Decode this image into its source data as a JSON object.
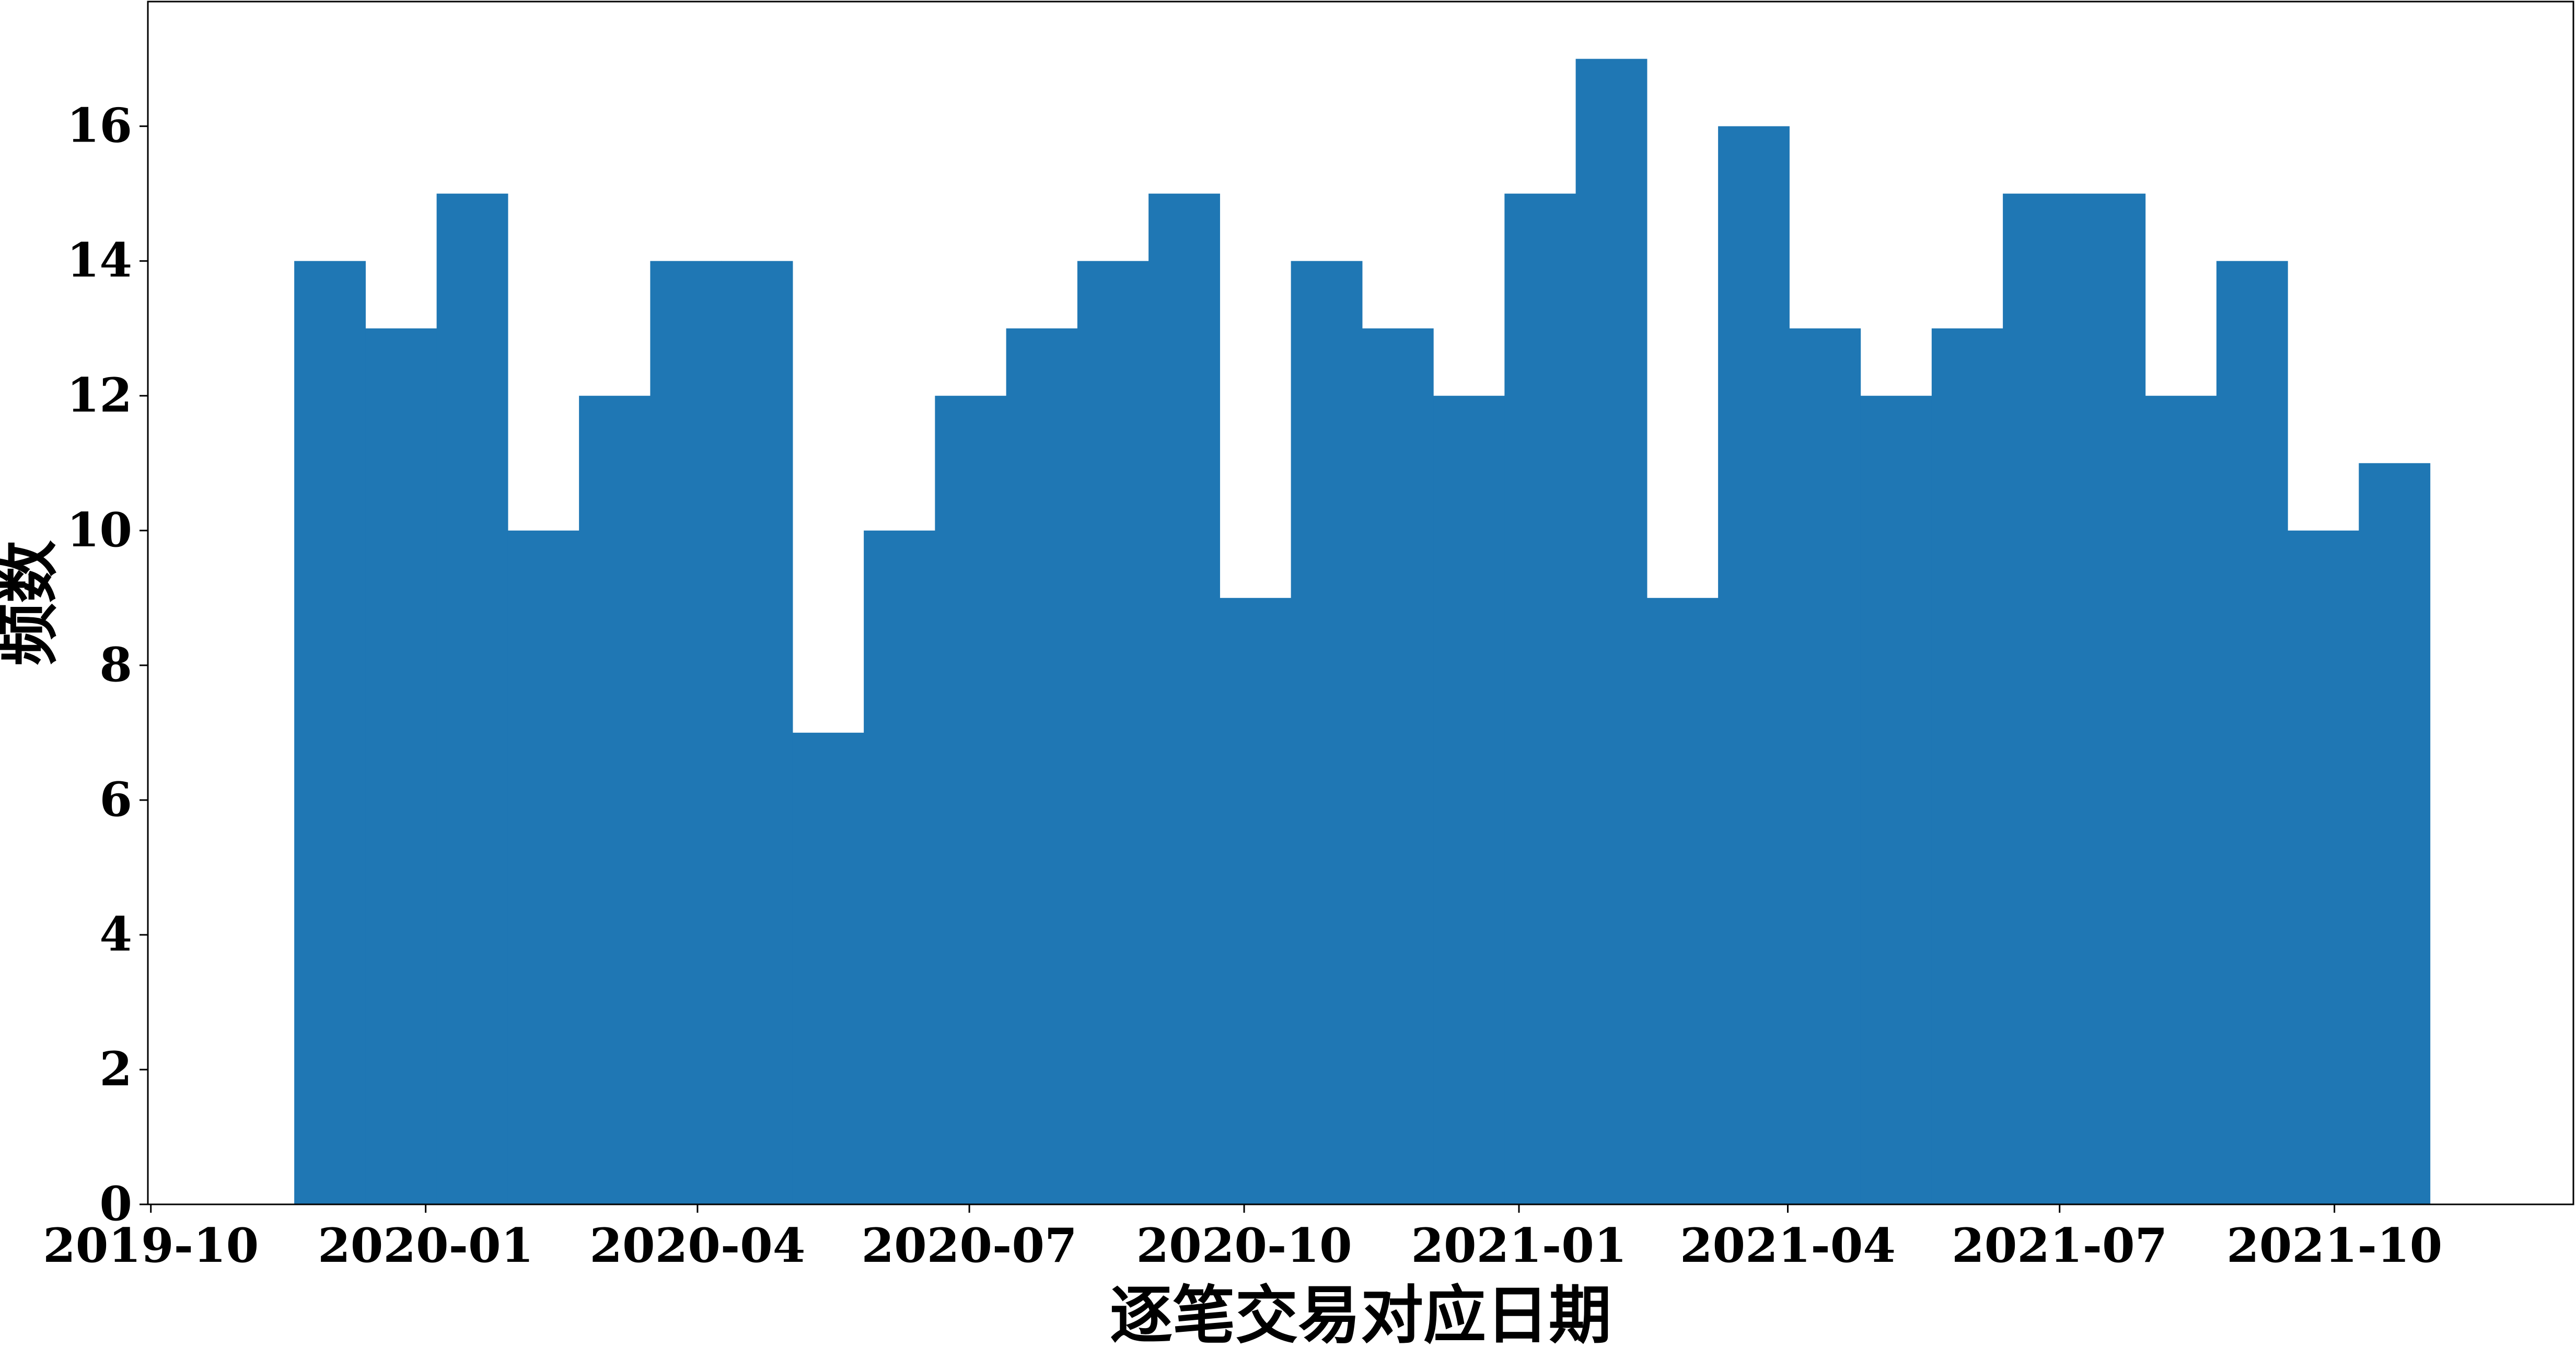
{
  "chart_data": {
    "type": "bar",
    "title": "",
    "xlabel": "逐笔交易对应日期",
    "ylabel": "频数",
    "ylim": [
      0,
      17.85
    ],
    "yticks": [
      0,
      2,
      4,
      6,
      8,
      10,
      12,
      14,
      16
    ],
    "xlim": [
      "2019-09-30",
      "2021-12-20"
    ],
    "xticks": [
      {
        "date": "2019-10-01",
        "label": "2019-10"
      },
      {
        "date": "2020-01-01",
        "label": "2020-01"
      },
      {
        "date": "2020-04-01",
        "label": "2020-04"
      },
      {
        "date": "2020-07-01",
        "label": "2020-07"
      },
      {
        "date": "2020-10-01",
        "label": "2020-10"
      },
      {
        "date": "2021-01-01",
        "label": "2021-01"
      },
      {
        "date": "2021-04-01",
        "label": "2021-04"
      },
      {
        "date": "2021-07-01",
        "label": "2021-07"
      },
      {
        "date": "2021-10-01",
        "label": "2021-10"
      }
    ],
    "bin_edges": [
      "2019-11-18",
      "2021-11-02"
    ],
    "values": [
      14,
      13,
      15,
      10,
      12,
      14,
      14,
      7,
      10,
      12,
      13,
      14,
      15,
      9,
      14,
      13,
      12,
      15,
      17,
      9,
      16,
      13,
      12,
      13,
      15,
      15,
      12,
      14,
      10,
      11
    ],
    "bar_color": "#1f77b4",
    "grid": false
  }
}
